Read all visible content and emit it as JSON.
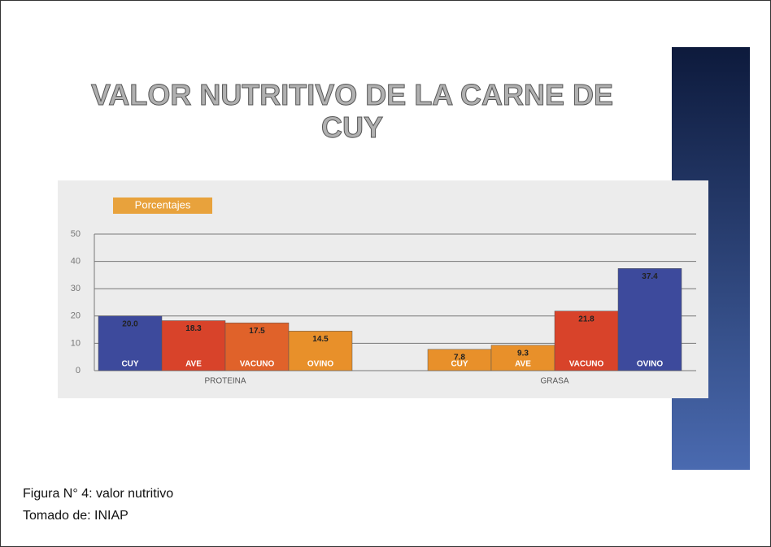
{
  "slide": {
    "title": "VALOR NUTRITIVO DE LA CARNE DE CUY",
    "caption": [
      "Figura N° 4: valor nutritivo",
      "Tomado de: INIAP"
    ]
  },
  "chart_data": {
    "type": "bar",
    "axis_label": "Porcentajes",
    "categories": [
      "PROTEINA",
      "GRASA"
    ],
    "series": [
      {
        "name": "CUY",
        "colors": [
          "#3d4a9c",
          "#e8902a"
        ],
        "values": [
          20.0,
          7.8
        ],
        "value_labels": [
          "20.0",
          "7.8"
        ]
      },
      {
        "name": "AVE",
        "colors": [
          "#d8432a",
          "#e8902a"
        ],
        "values": [
          18.3,
          9.3
        ],
        "value_labels": [
          "18.3",
          "9.3"
        ]
      },
      {
        "name": "VACUNO",
        "colors": [
          "#e0622a",
          "#d8432a"
        ],
        "values": [
          17.5,
          21.8
        ],
        "value_labels": [
          "17.5",
          "21.8"
        ]
      },
      {
        "name": "OVINO",
        "colors": [
          "#e8902a",
          "#3d4a9c"
        ],
        "values": [
          14.5,
          37.4
        ],
        "value_labels": [
          "14.5",
          "37.4"
        ]
      }
    ],
    "ylim": [
      0,
      50
    ],
    "yticks": [
      0,
      10,
      20,
      30,
      40,
      50
    ],
    "grid": true
  }
}
